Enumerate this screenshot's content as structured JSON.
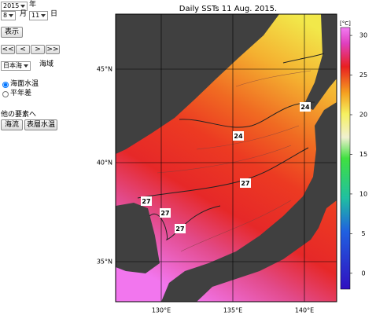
{
  "controls": {
    "year": "2015",
    "year_unit": "年",
    "month": "8",
    "month_unit": "月",
    "day": "11",
    "day_unit": "日",
    "show_button": "表示",
    "nav_buttons": [
      "<<",
      "<",
      ">",
      ">>"
    ],
    "region": "日本海",
    "region_unit": "海域",
    "modes": [
      "海面水温",
      "平年差"
    ],
    "other_label": "他の要素へ",
    "other_buttons": [
      "海流",
      "表層水温"
    ]
  },
  "map": {
    "title": "Daily SSTs 11 Aug. 2015.",
    "lat_labels": [
      "45°N",
      "40°N",
      "35°N"
    ],
    "lon_labels": [
      "130°E",
      "135°E",
      "140°E"
    ],
    "contour_labels": [
      "24",
      "24",
      "27",
      "27",
      "27",
      "27"
    ],
    "colorbar": {
      "unit": "[°C]",
      "range": [
        -2,
        31
      ],
      "ticks": [
        0,
        5,
        10,
        15,
        20,
        25,
        30
      ]
    }
  }
}
